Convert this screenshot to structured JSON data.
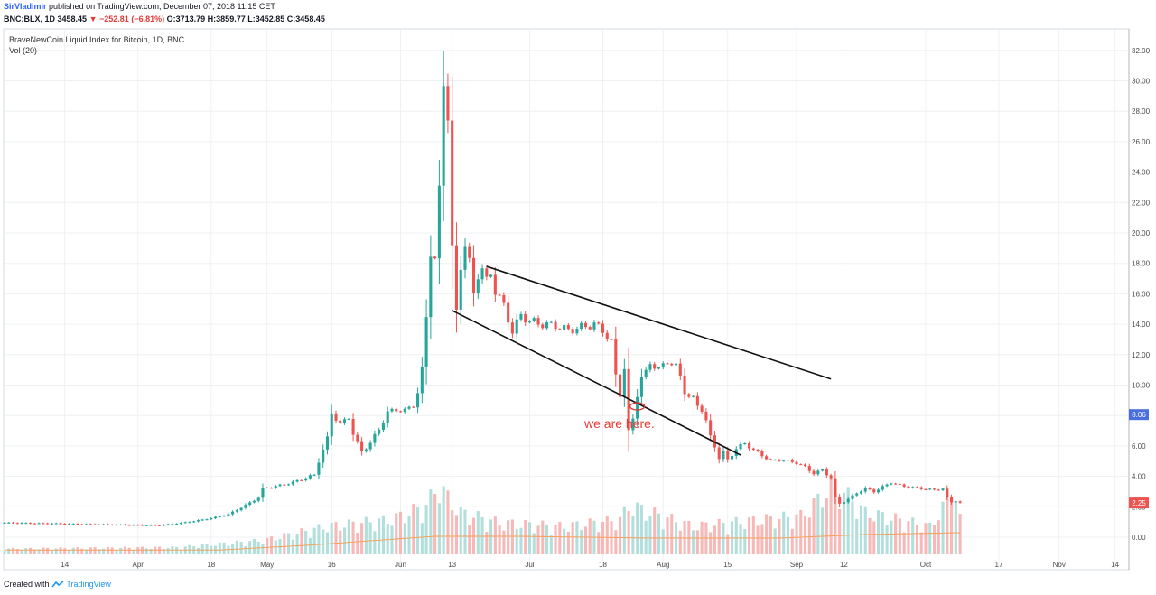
{
  "header": {
    "author": "SirVladimir",
    "published": "published on TradingView.com, December 07, 2018 11:15 CET",
    "symbol": "BNC:BLX, 1D",
    "last": "3458.45",
    "change_arrow": "▼",
    "change": "−252.81 (−6.81%)",
    "o_label": "O:",
    "o_value": "3713.79",
    "h_label": "H:",
    "h_value": "3859.77",
    "l_label": "L:",
    "l_value": "3452.85",
    "c_label": "C:",
    "c_value": "3458.45"
  },
  "legend": {
    "title": "BraveNewCoin Liquid Index for Bitcoin, 1D, BNC",
    "volume": "Vol (20)"
  },
  "price_badges": [
    {
      "label": "8.06",
      "value": 8.06,
      "color": "#4a6ee0"
    },
    {
      "label": "2.25",
      "value": 2.25,
      "color": "#ef5350"
    }
  ],
  "annotation": "we are here.",
  "footer": {
    "created": "Created with",
    "brand": "TradingView"
  },
  "colors": {
    "up": "#26a69a",
    "down": "#ef5350",
    "vol_up": "#b2dfdb",
    "vol_down": "#f6b9b7",
    "ma": "#f5a15c",
    "annotation": "#e53935"
  },
  "chart_data": {
    "type": "candlestick",
    "title": "BraveNewCoin Liquid Index for Bitcoin, 1D, BNC",
    "ylim": [
      -1.0,
      32.6
    ],
    "y_ticks": [
      0.0,
      2.0,
      4.0,
      6.0,
      8.0,
      10.0,
      12.0,
      14.0,
      16.0,
      18.0,
      20.0,
      22.0,
      24.0,
      26.0,
      28.0,
      30.0,
      32.0
    ],
    "x_ticks": [
      {
        "label": "14",
        "day": 14
      },
      {
        "label": "Apr",
        "day": 31
      },
      {
        "label": "18",
        "day": 48
      },
      {
        "label": "May",
        "day": 61
      },
      {
        "label": "16",
        "day": 76
      },
      {
        "label": "Jun",
        "day": 92
      },
      {
        "label": "13",
        "day": 104
      },
      {
        "label": "Jul",
        "day": 122
      },
      {
        "label": "18",
        "day": 139
      },
      {
        "label": "Aug",
        "day": 153
      },
      {
        "label": "15",
        "day": 168
      },
      {
        "label": "Sep",
        "day": 184
      },
      {
        "label": "12",
        "day": 195
      },
      {
        "label": "Oct",
        "day": 214
      },
      {
        "label": "17",
        "day": 231
      },
      {
        "label": "Nov",
        "day": 245
      },
      {
        "label": "14",
        "day": 258
      }
    ],
    "close_series": [
      [
        0,
        0.95
      ],
      [
        6,
        0.92
      ],
      [
        12,
        0.9
      ],
      [
        18,
        0.85
      ],
      [
        24,
        0.83
      ],
      [
        30,
        0.8
      ],
      [
        36,
        0.78
      ],
      [
        40,
        0.9
      ],
      [
        44,
        1.05
      ],
      [
        48,
        1.25
      ],
      [
        52,
        1.5
      ],
      [
        56,
        2.1
      ],
      [
        59,
        2.6
      ],
      [
        60,
        3.2
      ],
      [
        62,
        3.3
      ],
      [
        64,
        3.4
      ],
      [
        67,
        3.6
      ],
      [
        70,
        3.9
      ],
      [
        72,
        4.1
      ],
      [
        73,
        5.0
      ],
      [
        75,
        6.5
      ],
      [
        76,
        8.2
      ],
      [
        78,
        7.4
      ],
      [
        80,
        7.9
      ],
      [
        81,
        6.8
      ],
      [
        83,
        5.6
      ],
      [
        85,
        6.2
      ],
      [
        87,
        7.1
      ],
      [
        89,
        8.2
      ],
      [
        91,
        8.4
      ],
      [
        93,
        8.3
      ],
      [
        95,
        8.7
      ],
      [
        96,
        9.5
      ],
      [
        97,
        11.0
      ],
      [
        98,
        14.5
      ],
      [
        99,
        18.8
      ],
      [
        100,
        18.2
      ],
      [
        101,
        22.7
      ],
      [
        102,
        30.0
      ],
      [
        103,
        27.8
      ],
      [
        104,
        18.9
      ],
      [
        105,
        14.8
      ],
      [
        106,
        17.9
      ],
      [
        107,
        19.2
      ],
      [
        108,
        18.0
      ],
      [
        109,
        16.0
      ],
      [
        110,
        17.3
      ],
      [
        111,
        17.6
      ],
      [
        112,
        16.8
      ],
      [
        113,
        17.4
      ],
      [
        114,
        16.2
      ],
      [
        116,
        15.2
      ],
      [
        118,
        13.5
      ],
      [
        120,
        14.6
      ],
      [
        122,
        14.2
      ],
      [
        125,
        14.0
      ],
      [
        128,
        13.9
      ],
      [
        131,
        13.6
      ],
      [
        134,
        13.8
      ],
      [
        137,
        14.0
      ],
      [
        139,
        13.6
      ],
      [
        141,
        12.8
      ],
      [
        142,
        10.6
      ],
      [
        143,
        9.4
      ],
      [
        144,
        11.1
      ],
      [
        145,
        6.9
      ],
      [
        146,
        7.8
      ],
      [
        147,
        9.4
      ],
      [
        148,
        10.5
      ],
      [
        149,
        10.8
      ],
      [
        150,
        11.5
      ],
      [
        152,
        11.0
      ],
      [
        154,
        11.6
      ],
      [
        156,
        11.2
      ],
      [
        157,
        10.6
      ],
      [
        158,
        9.6
      ],
      [
        159,
        9.2
      ],
      [
        160,
        9.1
      ],
      [
        161,
        8.7
      ],
      [
        162,
        8.4
      ],
      [
        163,
        7.6
      ],
      [
        164,
        6.6
      ],
      [
        165,
        6.0
      ],
      [
        166,
        5.2
      ],
      [
        167,
        5.6
      ],
      [
        168,
        5.1
      ],
      [
        170,
        5.8
      ],
      [
        172,
        6.2
      ],
      [
        174,
        5.7
      ],
      [
        176,
        5.4
      ],
      [
        178,
        5.0
      ],
      [
        180,
        5.1
      ],
      [
        182,
        5.0
      ],
      [
        184,
        4.9
      ],
      [
        186,
        4.6
      ],
      [
        188,
        4.2
      ],
      [
        190,
        4.4
      ],
      [
        192,
        3.9
      ],
      [
        193,
        2.6
      ],
      [
        194,
        2.2
      ],
      [
        196,
        2.5
      ],
      [
        198,
        2.9
      ],
      [
        200,
        3.2
      ],
      [
        202,
        3.0
      ],
      [
        204,
        3.3
      ],
      [
        206,
        3.6
      ],
      [
        208,
        3.4
      ],
      [
        210,
        3.3
      ],
      [
        213,
        3.2
      ],
      [
        216,
        3.1
      ],
      [
        218,
        3.2
      ],
      [
        219,
        2.6
      ],
      [
        220,
        2.3
      ],
      [
        221,
        2.4
      ],
      [
        222,
        2.25
      ]
    ],
    "volume_series": [
      [
        0,
        0.08
      ],
      [
        40,
        0.1
      ],
      [
        60,
        0.2
      ],
      [
        75,
        0.4
      ],
      [
        90,
        0.5
      ],
      [
        98,
        0.7
      ],
      [
        101,
        1.0
      ],
      [
        103,
        0.8
      ],
      [
        106,
        0.6
      ],
      [
        115,
        0.45
      ],
      [
        130,
        0.4
      ],
      [
        143,
        0.5
      ],
      [
        145,
        0.7
      ],
      [
        160,
        0.4
      ],
      [
        185,
        0.55
      ],
      [
        193,
        1.0
      ],
      [
        200,
        0.6
      ],
      [
        215,
        0.4
      ],
      [
        219,
        0.75
      ],
      [
        220,
        1.1
      ],
      [
        222,
        0.5
      ]
    ],
    "volume_ma": [
      [
        0,
        0.12
      ],
      [
        50,
        0.12
      ],
      [
        70,
        0.25
      ],
      [
        100,
        0.5
      ],
      [
        120,
        0.5
      ],
      [
        150,
        0.45
      ],
      [
        180,
        0.45
      ],
      [
        200,
        0.55
      ],
      [
        222,
        0.6
      ]
    ],
    "trendlines": [
      {
        "name": "upper",
        "from": [
          112,
          17.8
        ],
        "to": [
          192,
          10.4
        ]
      },
      {
        "name": "lower",
        "from": [
          104,
          14.9
        ],
        "to": [
          171,
          5.4
        ]
      }
    ],
    "marker": {
      "day": 147,
      "value": 8.6
    }
  }
}
